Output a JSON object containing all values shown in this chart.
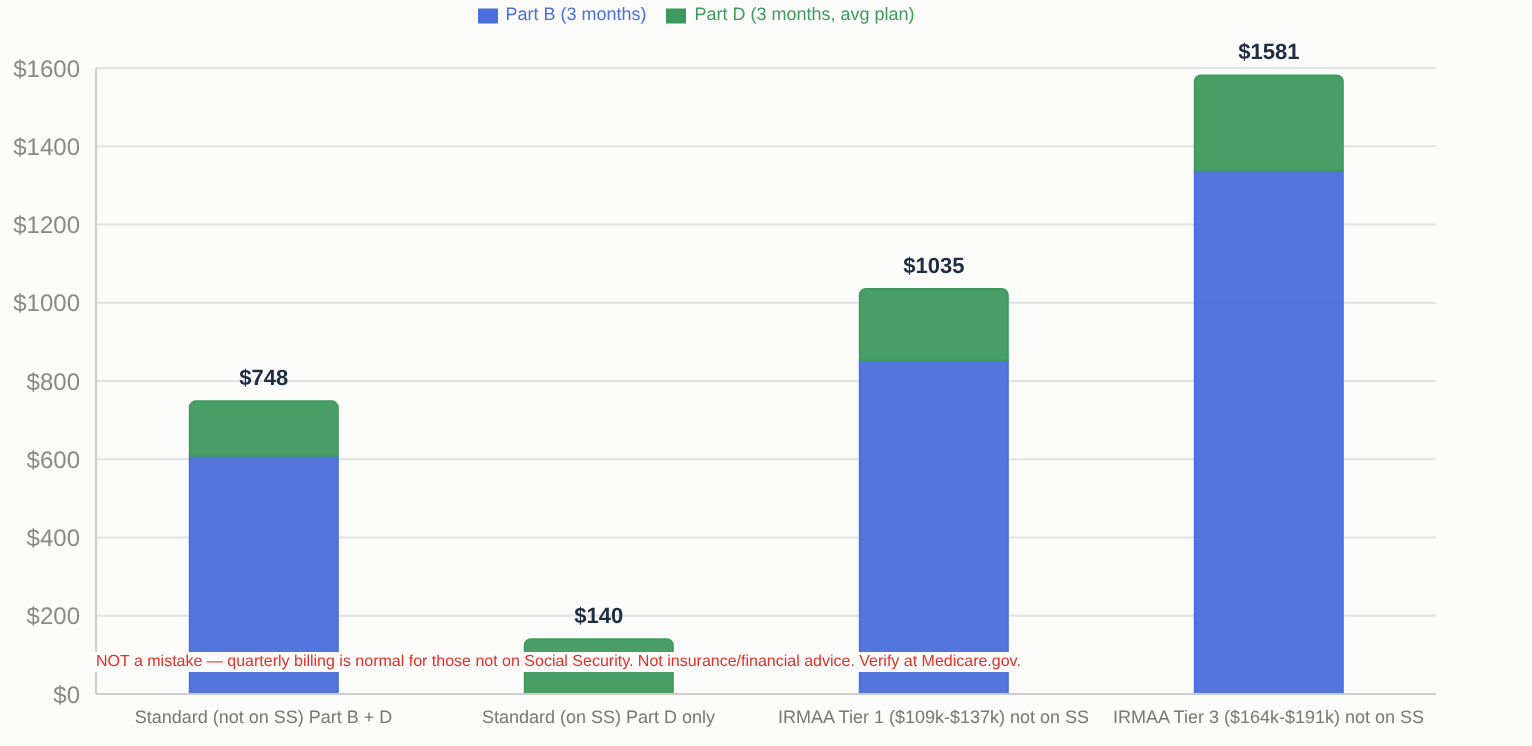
{
  "chart_data": {
    "type": "bar",
    "stacked": true,
    "categories": [
      "Standard (not on SS) Part B + D",
      "Standard (on SS) Part D only",
      "IRMAA Tier 1 ($109k-$137k) not on SS",
      "IRMAA Tier 3 ($164k-$191k) not on SS"
    ],
    "series": [
      {
        "name": "Part B (3 months)",
        "color": "#4a6fdc",
        "values": [
          609,
          0,
          852,
          1339
        ]
      },
      {
        "name": "Part D (3 months, avg plan)",
        "color": "#3f9a5e",
        "values": [
          139,
          140,
          183,
          242
        ]
      }
    ],
    "totals": [
      "$748",
      "$140",
      "$1035",
      "$1581"
    ],
    "ylim": [
      0,
      1600
    ],
    "yticks": [
      {
        "value": 0,
        "label": "$0"
      },
      {
        "value": 200,
        "label": "$200"
      },
      {
        "value": 400,
        "label": "$400"
      },
      {
        "value": 600,
        "label": "$600"
      },
      {
        "value": 800,
        "label": "$800"
      },
      {
        "value": 1000,
        "label": "$1000"
      },
      {
        "value": 1200,
        "label": "$1200"
      },
      {
        "value": 1400,
        "label": "$1400"
      },
      {
        "value": 1600,
        "label": "$1600"
      }
    ],
    "grid": "y",
    "legend": "top",
    "annotations": [
      "NOT a mistake — quarterly billing is normal for those not on Social Security. Not insurance/financial advice. Verify at Medicare.gov."
    ]
  }
}
